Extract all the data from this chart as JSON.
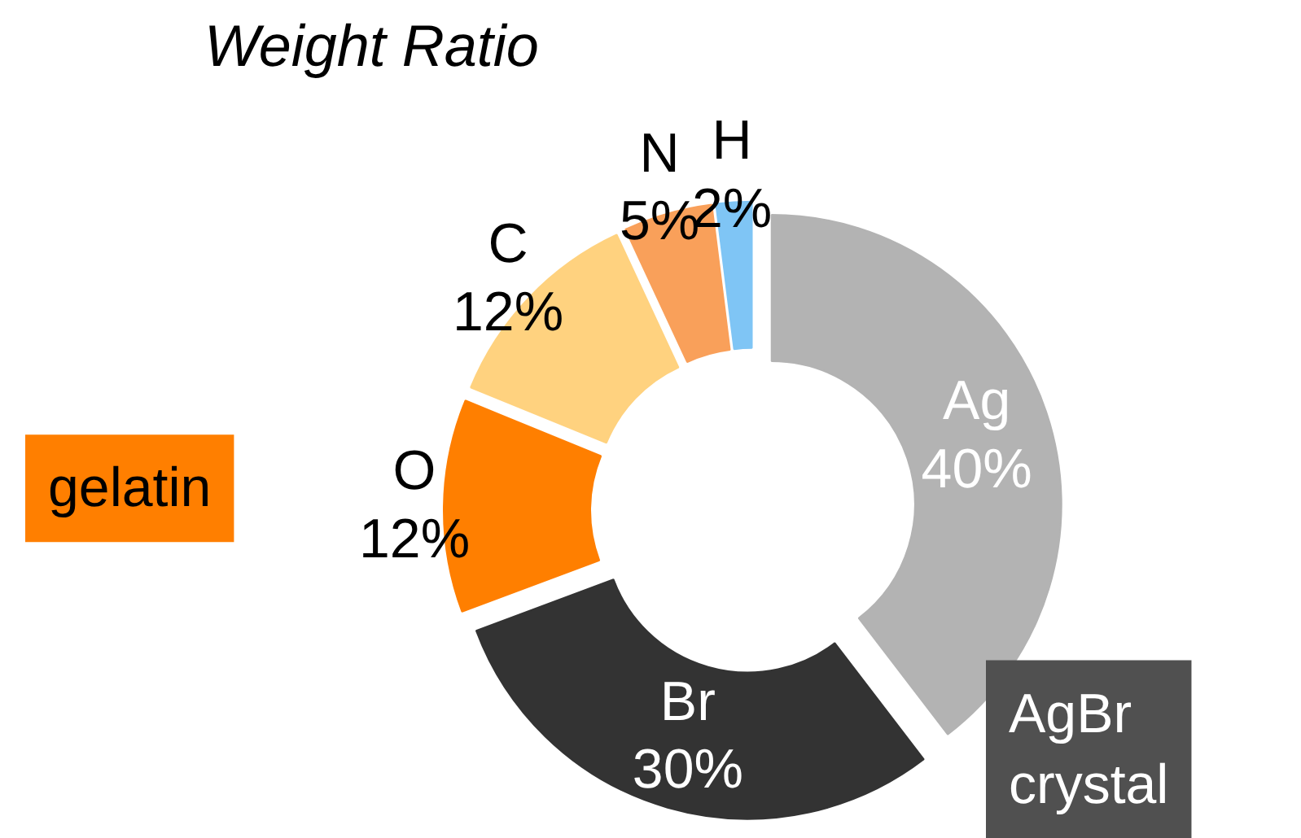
{
  "chart_data": {
    "type": "donut",
    "title": "Weight Ratio",
    "categories": [
      "Ag",
      "Br",
      "O",
      "C",
      "N",
      "H"
    ],
    "values": [
      40,
      30,
      12,
      12,
      5,
      2
    ],
    "colors": [
      "#b3b3b3",
      "#333333",
      "#ff7f00",
      "#ffd27f",
      "#f9a05a",
      "#7fc5f5"
    ],
    "value_labels": [
      "40%",
      "30%",
      "12%",
      "12%",
      "5%",
      "2%"
    ],
    "annotations": [
      "gelatin",
      "AgBr crystal"
    ]
  }
}
